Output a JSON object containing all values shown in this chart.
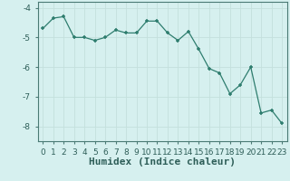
{
  "title": "",
  "xlabel": "Humidex (Indice chaleur)",
  "x": [
    0,
    1,
    2,
    3,
    4,
    5,
    6,
    7,
    8,
    9,
    10,
    11,
    12,
    13,
    14,
    15,
    16,
    17,
    18,
    19,
    20,
    21,
    22,
    23
  ],
  "y": [
    -4.7,
    -4.35,
    -4.3,
    -5.0,
    -5.0,
    -5.1,
    -5.0,
    -4.75,
    -4.85,
    -4.85,
    -4.45,
    -4.45,
    -4.85,
    -5.1,
    -4.8,
    -5.4,
    -6.05,
    -6.2,
    -6.9,
    -6.6,
    -6.0,
    -7.55,
    -7.45,
    -7.9
  ],
  "line_color": "#2e7d6e",
  "bg_color": "#d6f0ef",
  "grid_color": "#c4e0dd",
  "ylim": [
    -8.5,
    -3.8
  ],
  "xlim": [
    -0.5,
    23.5
  ],
  "yticks": [
    -8,
    -7,
    -6,
    -5,
    -4
  ],
  "xticks": [
    0,
    1,
    2,
    3,
    4,
    5,
    6,
    7,
    8,
    9,
    10,
    11,
    12,
    13,
    14,
    15,
    16,
    17,
    18,
    19,
    20,
    21,
    22,
    23
  ],
  "tick_fontsize": 6.5,
  "xlabel_fontsize": 8,
  "marker": "+",
  "marker_size": 3.5,
  "line_width": 0.9,
  "spine_color": "#4a7a74",
  "tick_color": "#4a7a74",
  "label_color": "#2e5e58"
}
